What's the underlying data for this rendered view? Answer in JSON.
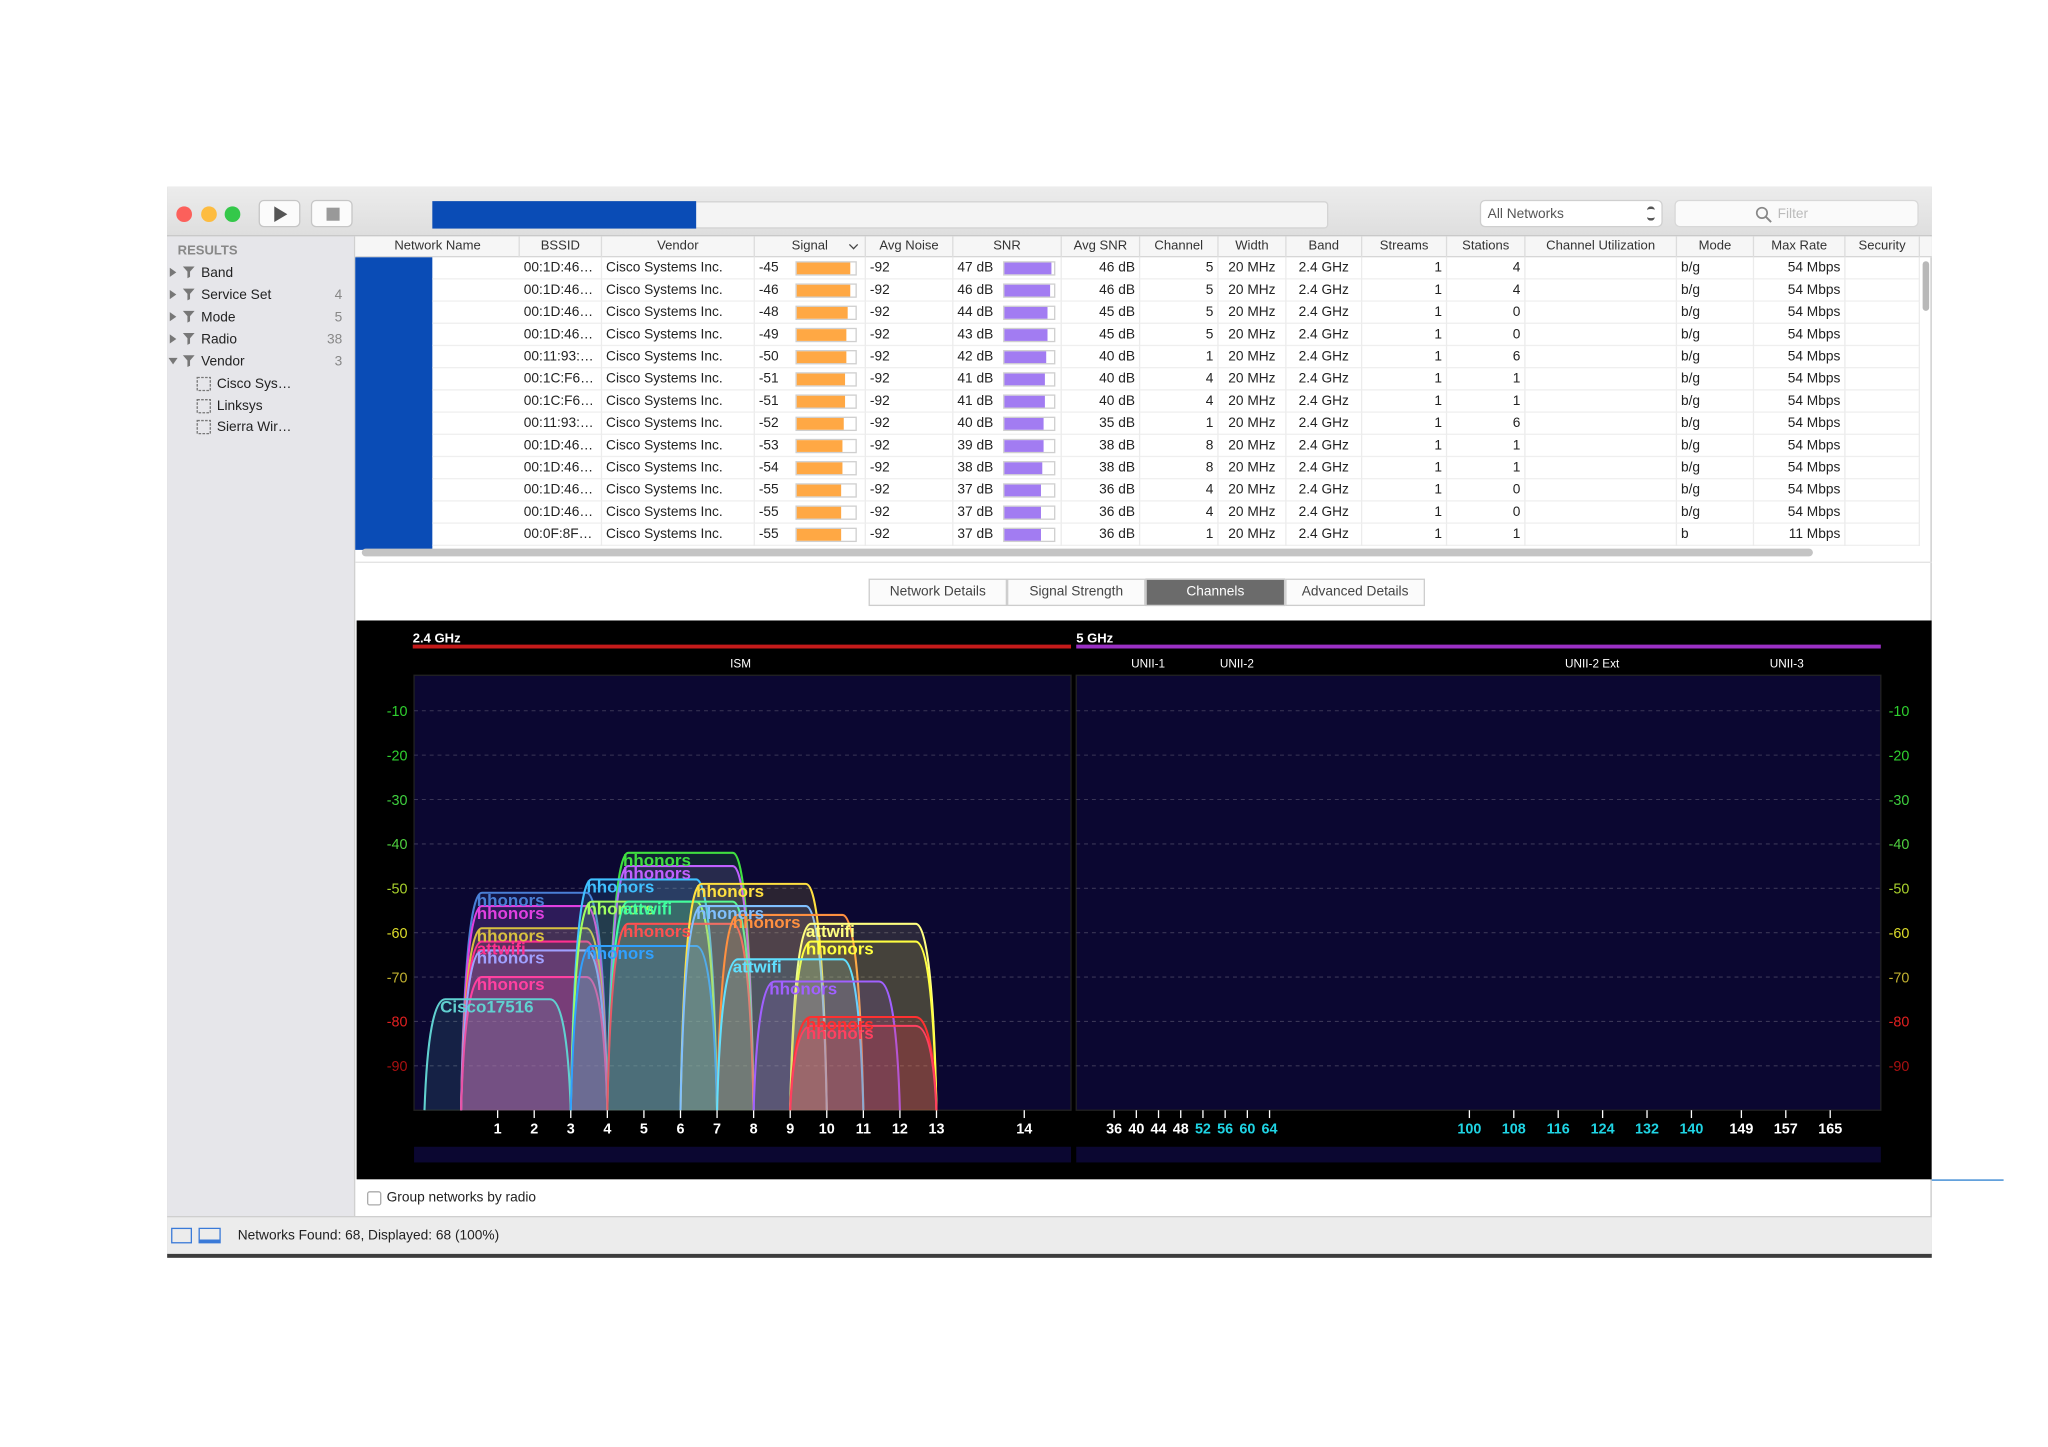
{
  "toolbar": {
    "scope": "All Networks",
    "filter_placeholder": "Filter"
  },
  "sidebar": {
    "heading": "RESULTS",
    "groups": [
      {
        "label": "Band"
      },
      {
        "label": "Service Set",
        "count": 4
      },
      {
        "label": "Mode",
        "count": 5
      },
      {
        "label": "Radio",
        "count": 38
      },
      {
        "label": "Vendor",
        "count": 3
      }
    ],
    "vendors": [
      "Cisco Sys…",
      "Linksys",
      "Sierra Wir…"
    ]
  },
  "table": {
    "columns": [
      "Network Name",
      "BSSID",
      "Vendor",
      "Signal",
      "Avg Noise",
      "SNR",
      "Avg SNR",
      "Channel",
      "Width",
      "Band",
      "Streams",
      "Stations",
      "Channel Utilization",
      "Mode",
      "Max Rate",
      "Security"
    ],
    "signal_bar_color": "#ffa844",
    "snr_bar_color": "#a27cf2",
    "rows": [
      {
        "bssid": "00:1D:46…",
        "vendor": "Cisco Systems Inc.",
        "signal": -45,
        "avg_noise": -92,
        "snr": 47,
        "snr_label": "47 dB",
        "avg_snr": "46 dB",
        "channel": 5,
        "width": "20 MHz",
        "band": "2.4 GHz",
        "streams": 1,
        "stations": 4,
        "mode": "b/g",
        "max_rate": "54 Mbps"
      },
      {
        "bssid": "00:1D:46…",
        "vendor": "Cisco Systems Inc.",
        "signal": -46,
        "avg_noise": -92,
        "snr": 46,
        "snr_label": "46 dB",
        "avg_snr": "46 dB",
        "channel": 5,
        "width": "20 MHz",
        "band": "2.4 GHz",
        "streams": 1,
        "stations": 4,
        "mode": "b/g",
        "max_rate": "54 Mbps"
      },
      {
        "bssid": "00:1D:46…",
        "vendor": "Cisco Systems Inc.",
        "signal": -48,
        "avg_noise": -92,
        "snr": 44,
        "snr_label": "44 dB",
        "avg_snr": "45 dB",
        "channel": 5,
        "width": "20 MHz",
        "band": "2.4 GHz",
        "streams": 1,
        "stations": 0,
        "mode": "b/g",
        "max_rate": "54 Mbps"
      },
      {
        "bssid": "00:1D:46…",
        "vendor": "Cisco Systems Inc.",
        "signal": -49,
        "avg_noise": -92,
        "snr": 43,
        "snr_label": "43 dB",
        "avg_snr": "45 dB",
        "channel": 5,
        "width": "20 MHz",
        "band": "2.4 GHz",
        "streams": 1,
        "stations": 0,
        "mode": "b/g",
        "max_rate": "54 Mbps"
      },
      {
        "bssid": "00:11:93:…",
        "vendor": "Cisco Systems Inc.",
        "signal": -50,
        "avg_noise": -92,
        "snr": 42,
        "snr_label": "42 dB",
        "avg_snr": "40 dB",
        "channel": 1,
        "width": "20 MHz",
        "band": "2.4 GHz",
        "streams": 1,
        "stations": 6,
        "mode": "b/g",
        "max_rate": "54 Mbps"
      },
      {
        "bssid": "00:1C:F6…",
        "vendor": "Cisco Systems Inc.",
        "signal": -51,
        "avg_noise": -92,
        "snr": 41,
        "snr_label": "41 dB",
        "avg_snr": "40 dB",
        "channel": 4,
        "width": "20 MHz",
        "band": "2.4 GHz",
        "streams": 1,
        "stations": 1,
        "mode": "b/g",
        "max_rate": "54 Mbps"
      },
      {
        "bssid": "00:1C:F6…",
        "vendor": "Cisco Systems Inc.",
        "signal": -51,
        "avg_noise": -92,
        "snr": 41,
        "snr_label": "41 dB",
        "avg_snr": "40 dB",
        "channel": 4,
        "width": "20 MHz",
        "band": "2.4 GHz",
        "streams": 1,
        "stations": 1,
        "mode": "b/g",
        "max_rate": "54 Mbps"
      },
      {
        "bssid": "00:11:93:…",
        "vendor": "Cisco Systems Inc.",
        "signal": -52,
        "avg_noise": -92,
        "snr": 40,
        "snr_label": "40 dB",
        "avg_snr": "35 dB",
        "channel": 1,
        "width": "20 MHz",
        "band": "2.4 GHz",
        "streams": 1,
        "stations": 6,
        "mode": "b/g",
        "max_rate": "54 Mbps"
      },
      {
        "bssid": "00:1D:46…",
        "vendor": "Cisco Systems Inc.",
        "signal": -53,
        "avg_noise": -92,
        "snr": 39,
        "snr_label": "39 dB",
        "avg_snr": "38 dB",
        "channel": 8,
        "width": "20 MHz",
        "band": "2.4 GHz",
        "streams": 1,
        "stations": 1,
        "mode": "b/g",
        "max_rate": "54 Mbps"
      },
      {
        "bssid": "00:1D:46…",
        "vendor": "Cisco Systems Inc.",
        "signal": -54,
        "avg_noise": -92,
        "snr": 38,
        "snr_label": "38 dB",
        "avg_snr": "38 dB",
        "channel": 8,
        "width": "20 MHz",
        "band": "2.4 GHz",
        "streams": 1,
        "stations": 1,
        "mode": "b/g",
        "max_rate": "54 Mbps"
      },
      {
        "bssid": "00:1D:46…",
        "vendor": "Cisco Systems Inc.",
        "signal": -55,
        "avg_noise": -92,
        "snr": 37,
        "snr_label": "37 dB",
        "avg_snr": "36 dB",
        "channel": 4,
        "width": "20 MHz",
        "band": "2.4 GHz",
        "streams": 1,
        "stations": 0,
        "mode": "b/g",
        "max_rate": "54 Mbps"
      },
      {
        "bssid": "00:1D:46…",
        "vendor": "Cisco Systems Inc.",
        "signal": -55,
        "avg_noise": -92,
        "snr": 37,
        "snr_label": "37 dB",
        "avg_snr": "36 dB",
        "channel": 4,
        "width": "20 MHz",
        "band": "2.4 GHz",
        "streams": 1,
        "stations": 0,
        "mode": "b/g",
        "max_rate": "54 Mbps"
      },
      {
        "bssid": "00:0F:8F…",
        "vendor": "Cisco Systems Inc.",
        "signal": -55,
        "avg_noise": -92,
        "snr": 37,
        "snr_label": "37 dB",
        "avg_snr": "36 dB",
        "channel": 1,
        "width": "20 MHz",
        "band": "2.4 GHz",
        "streams": 1,
        "stations": 1,
        "mode": "b",
        "max_rate": "11 Mbps"
      }
    ]
  },
  "tabs": [
    "Network Details",
    "Signal Strength",
    "Channels",
    "Advanced Details"
  ],
  "selected_tab": 2,
  "channels_chart": {
    "band_24": {
      "title": "2.4 GHz",
      "subband": "ISM",
      "color": "#c41a1a"
    },
    "band_5": {
      "title": "5 GHz",
      "subbands": [
        "UNII-1",
        "UNII-2",
        "UNII-2 Ext",
        "UNII-3"
      ],
      "color": "#9a30c4"
    },
    "ylim": [
      -100,
      -2
    ],
    "yticks": [
      -10,
      -20,
      -30,
      -40,
      -50,
      -60,
      -70,
      -80,
      -90
    ],
    "ytick_colors": [
      "#2fcf2f",
      "#2fcf2f",
      "#3fcf3f",
      "#4fcf3f",
      "#a8d02c",
      "#dcdc2a",
      "#c0b030",
      "#e02020",
      "#a81010"
    ],
    "channels_24": [
      1,
      2,
      3,
      4,
      5,
      6,
      7,
      8,
      9,
      10,
      11,
      12,
      13,
      14
    ],
    "channels_5": [
      36,
      40,
      44,
      48,
      52,
      56,
      60,
      64,
      100,
      108,
      116,
      124,
      132,
      140,
      149,
      157,
      165
    ],
    "channel_5_colors": [
      "#ffffff",
      "#ffffff",
      "#ffffff",
      "#ffffff",
      "#1fd4e4",
      "#1fd4e4",
      "#1fd4e4",
      "#1fd4e4",
      "#1fd4e4",
      "#1fd4e4",
      "#1fd4e4",
      "#1fd4e4",
      "#1fd4e4",
      "#1fd4e4",
      "#ffffff",
      "#ffffff",
      "#ffffff"
    ],
    "networks": [
      {
        "name": "hhonors",
        "channel": 2,
        "signal": -51,
        "color": "#4a7fd6"
      },
      {
        "name": "hhonors",
        "channel": 2,
        "signal": -54,
        "color": "#e040e0"
      },
      {
        "name": "hhonors",
        "channel": 2,
        "signal": -59,
        "color": "#d8c040"
      },
      {
        "name": "attwifi",
        "channel": 2,
        "signal": -62,
        "color": "#ff3090"
      },
      {
        "name": "hhonors",
        "channel": 2,
        "signal": -64,
        "color": "#a0a0ff"
      },
      {
        "name": "hhonors",
        "channel": 2,
        "signal": -70,
        "color": "#ff40a0"
      },
      {
        "name": "Cisco17516",
        "channel": 1,
        "signal": -75,
        "color": "#60d0d0"
      },
      {
        "name": "hhonors",
        "channel": 6,
        "signal": -42,
        "color": "#40e040"
      },
      {
        "name": "hhonors",
        "channel": 6,
        "signal": -45,
        "color": "#c060ff"
      },
      {
        "name": "hhonors",
        "channel": 5,
        "signal": -48,
        "color": "#40c0ff"
      },
      {
        "name": "hhonors",
        "channel": 5,
        "signal": -53,
        "color": "#a0ff60"
      },
      {
        "name": "attwifi",
        "channel": 6,
        "signal": -53,
        "color": "#40ffa0"
      },
      {
        "name": "hhonors",
        "channel": 6,
        "signal": -58,
        "color": "#ff5050"
      },
      {
        "name": "hhonors",
        "channel": 5,
        "signal": -63,
        "color": "#30a0ff"
      },
      {
        "name": "hhonors",
        "channel": 8,
        "signal": -49,
        "color": "#ffe040"
      },
      {
        "name": "hhonors",
        "channel": 8,
        "signal": -54,
        "color": "#80c0ff"
      },
      {
        "name": "hhonors",
        "channel": 9,
        "signal": -56,
        "color": "#ff9040"
      },
      {
        "name": "attwifi",
        "channel": 11,
        "signal": -58,
        "color": "#ffff80"
      },
      {
        "name": "hhonors",
        "channel": 11,
        "signal": -62,
        "color": "#ffff40"
      },
      {
        "name": "attwifi",
        "channel": 9,
        "signal": -66,
        "color": "#60e0ff"
      },
      {
        "name": "hhonors",
        "channel": 10,
        "signal": -71,
        "color": "#a060ff"
      },
      {
        "name": "hhonors",
        "channel": 11,
        "signal": -79,
        "color": "#ff3030"
      },
      {
        "name": "hhonors",
        "channel": 11,
        "signal": -81,
        "color": "#ff4060"
      }
    ]
  },
  "footer": {
    "group_label": "Group networks by radio",
    "status": "Networks Found: 68, Displayed: 68 (100%)"
  }
}
